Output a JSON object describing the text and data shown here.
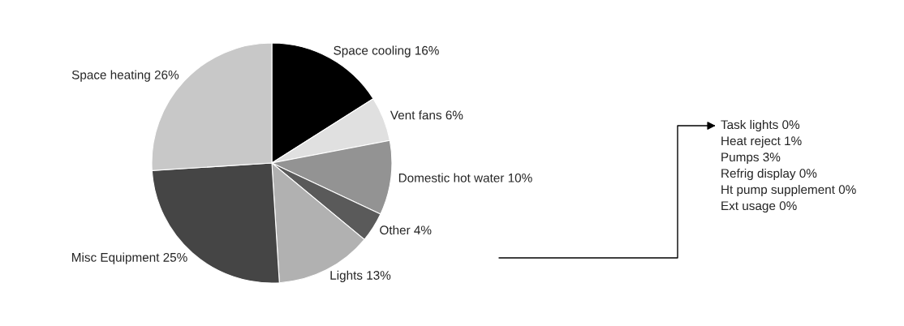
{
  "chart_data": {
    "type": "pie",
    "categories": [
      "Space cooling 16%",
      "Vent fans 6%",
      "Domestic hot water 10%",
      "Other 4%",
      "Lights 13%",
      "Misc Equipment 25%",
      "Space heating 26%"
    ],
    "values": [
      16,
      6,
      10,
      4,
      13,
      25,
      26
    ],
    "colors": [
      "#000000",
      "#e0e0e0",
      "#939393",
      "#5a5a5a",
      "#b1b1b1",
      "#454545",
      "#c8c8c8"
    ],
    "annotations": [
      "Task lights 0%",
      "Heat reject 1%",
      "Pumps 3%",
      "Refrig display 0%",
      "Ht pump supplement 0%",
      "Ext usage 0%"
    ]
  }
}
